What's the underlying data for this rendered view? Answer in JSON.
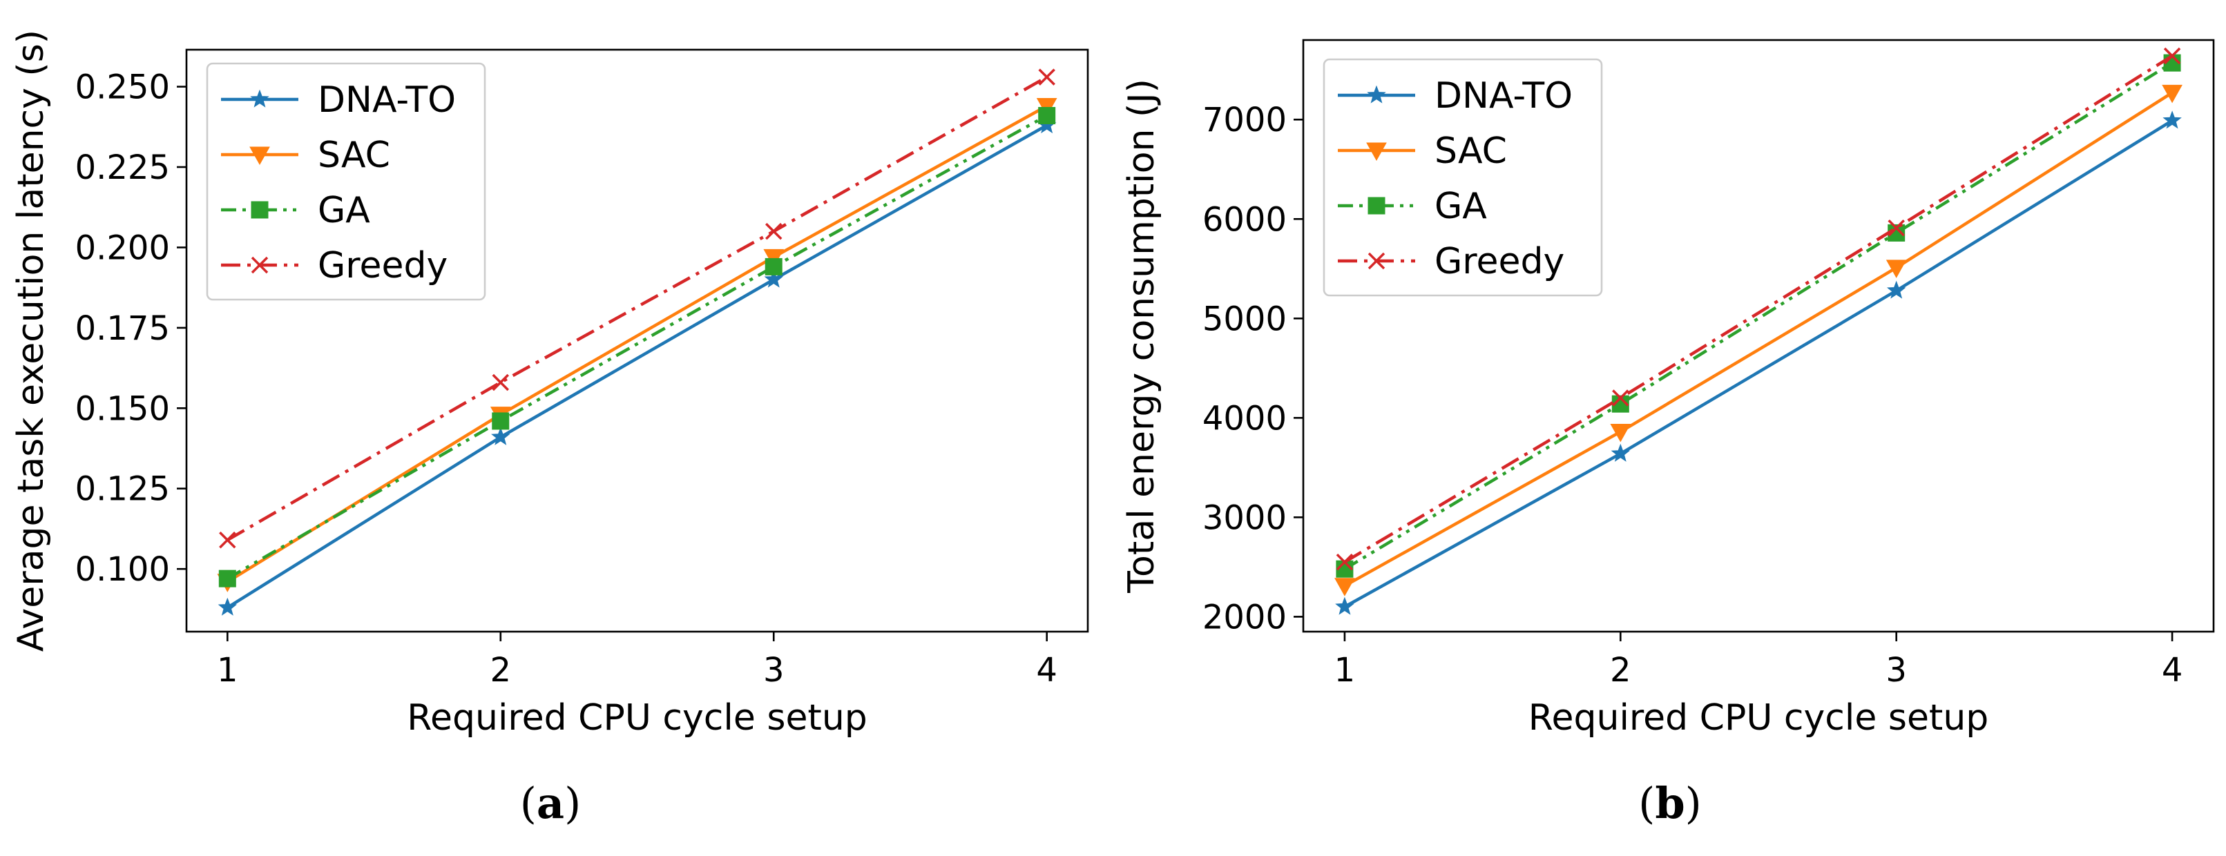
{
  "chart_data": [
    {
      "type": "line",
      "panel_caption": {
        "open": "(",
        "letter": "a",
        "close": ")"
      },
      "xlabel": "Required CPU cycle setup",
      "ylabel": "Average task execution latency (s)",
      "x": [
        1,
        2,
        3,
        4
      ],
      "xticks": [
        "1",
        "2",
        "3",
        "4"
      ],
      "xlim": [
        0.85,
        4.15
      ],
      "ylim": [
        0.0805,
        0.2615
      ],
      "yticks": [
        0.1,
        0.125,
        0.15,
        0.175,
        0.2,
        0.225,
        0.25
      ],
      "ytick_labels": [
        "0.100",
        "0.125",
        "0.150",
        "0.175",
        "0.200",
        "0.225",
        "0.250"
      ],
      "legend_position": "top-left",
      "series": [
        {
          "name": "DNA-TO",
          "values": [
            0.088,
            0.141,
            0.19,
            0.238
          ],
          "color": "#1f77b4",
          "marker": "star",
          "line_style": "solid"
        },
        {
          "name": "SAC",
          "values": [
            0.096,
            0.148,
            0.197,
            0.244
          ],
          "color": "#ff7f0e",
          "marker": "triangle-down",
          "line_style": "solid"
        },
        {
          "name": "GA",
          "values": [
            0.097,
            0.146,
            0.194,
            0.241
          ],
          "color": "#2ca02c",
          "marker": "square",
          "line_style": "dash-dot-dot"
        },
        {
          "name": "Greedy",
          "values": [
            0.109,
            0.158,
            0.205,
            0.253
          ],
          "color": "#d62728",
          "marker": "x",
          "line_style": "dash-dot"
        }
      ]
    },
    {
      "type": "line",
      "panel_caption": {
        "open": "(",
        "letter": "b",
        "close": ")"
      },
      "xlabel": "Required CPU cycle setup",
      "ylabel": "Total energy consumption (J)",
      "x": [
        1,
        2,
        3,
        4
      ],
      "xticks": [
        "1",
        "2",
        "3",
        "4"
      ],
      "xlim": [
        0.85,
        4.15
      ],
      "ylim": [
        1850,
        7800
      ],
      "yticks": [
        2000,
        3000,
        4000,
        5000,
        6000,
        7000
      ],
      "ytick_labels": [
        "2000",
        "3000",
        "4000",
        "5000",
        "6000",
        "7000"
      ],
      "legend_position": "top-left",
      "series": [
        {
          "name": "DNA-TO",
          "values": [
            2100,
            3640,
            5280,
            6990
          ],
          "color": "#1f77b4",
          "marker": "star",
          "line_style": "solid"
        },
        {
          "name": "SAC",
          "values": [
            2310,
            3860,
            5510,
            7270
          ],
          "color": "#ff7f0e",
          "marker": "triangle-down",
          "line_style": "solid"
        },
        {
          "name": "GA",
          "values": [
            2480,
            4140,
            5860,
            7570
          ],
          "color": "#2ca02c",
          "marker": "square",
          "line_style": "dash-dot-dot"
        },
        {
          "name": "Greedy",
          "values": [
            2550,
            4200,
            5910,
            7640
          ],
          "color": "#d62728",
          "marker": "x",
          "line_style": "dash-dot"
        }
      ]
    }
  ]
}
